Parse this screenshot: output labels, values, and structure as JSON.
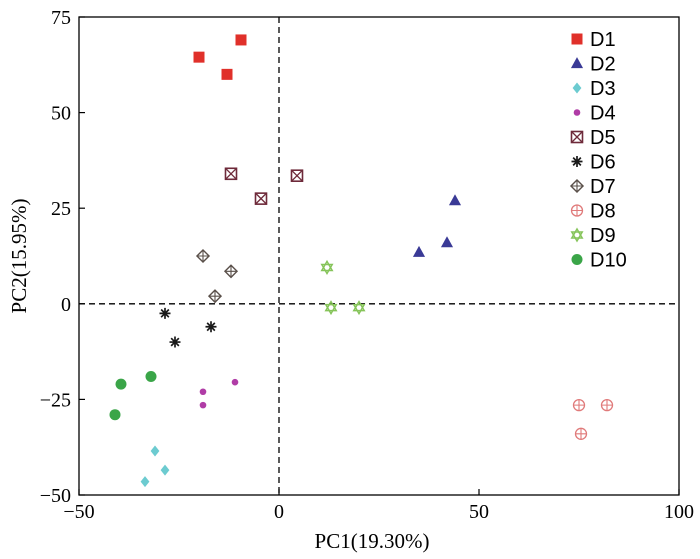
{
  "chart_data": {
    "type": "scatter",
    "title": "",
    "xlabel": "PC1(19.30%)",
    "ylabel": "PC2(15.95%)",
    "xlim": [
      -50,
      100
    ],
    "ylim": [
      -50,
      75
    ],
    "xticks": [
      -50,
      0,
      50,
      100
    ],
    "yticks": [
      -50,
      -25,
      0,
      25,
      50,
      75
    ],
    "xtick_labels": [
      "−50",
      "0",
      "50",
      "100"
    ],
    "ytick_labels": [
      "−50",
      "−25",
      "0",
      "25",
      "50",
      "75"
    ],
    "reference_lines": {
      "x": 0,
      "y": 0,
      "style": "dashed"
    },
    "legend_position": "top-right",
    "series": [
      {
        "name": "D1",
        "marker": "square",
        "color": "#e0302a",
        "points": [
          [
            -20,
            64.5
          ],
          [
            -13,
            60
          ],
          [
            -9.5,
            69
          ]
        ]
      },
      {
        "name": "D2",
        "marker": "triangle",
        "color": "#3a3a96",
        "points": [
          [
            35,
            13.5
          ],
          [
            42,
            16
          ],
          [
            44,
            27
          ]
        ]
      },
      {
        "name": "D3",
        "marker": "diamond",
        "color": "#6ccbd0",
        "points": [
          [
            -31,
            -38.5
          ],
          [
            -28.5,
            -43.5
          ],
          [
            -33.5,
            -46.5
          ]
        ]
      },
      {
        "name": "D4",
        "marker": "dot",
        "color": "#b03ca6",
        "points": [
          [
            -19,
            -23
          ],
          [
            -19,
            -26.5
          ],
          [
            -11,
            -20.5
          ]
        ]
      },
      {
        "name": "D5",
        "marker": "boxed-x",
        "color": "#6e2a3a",
        "points": [
          [
            -12,
            34
          ],
          [
            -4.5,
            27.5
          ],
          [
            4.5,
            33.5
          ]
        ]
      },
      {
        "name": "D6",
        "marker": "asterisk",
        "color": "#1a1a1a",
        "points": [
          [
            -28.5,
            -2.5
          ],
          [
            -26,
            -10
          ],
          [
            -17,
            -6
          ]
        ]
      },
      {
        "name": "D7",
        "marker": "diamond-plus",
        "color": "#5a504a",
        "points": [
          [
            -19,
            12.5
          ],
          [
            -12,
            8.5
          ],
          [
            -16,
            2
          ]
        ]
      },
      {
        "name": "D8",
        "marker": "circle-plus",
        "color": "#e07a7a",
        "points": [
          [
            75,
            -26.5
          ],
          [
            82,
            -26.5
          ],
          [
            75.5,
            -34
          ]
        ]
      },
      {
        "name": "D9",
        "marker": "hexagram",
        "color": "#86c45a",
        "points": [
          [
            12,
            9.5
          ],
          [
            13,
            -1
          ],
          [
            20,
            -1
          ]
        ]
      },
      {
        "name": "D10",
        "marker": "filled-circle",
        "color": "#3aa548",
        "points": [
          [
            -39.5,
            -21
          ],
          [
            -32,
            -19
          ],
          [
            -41,
            -29
          ]
        ]
      }
    ]
  }
}
